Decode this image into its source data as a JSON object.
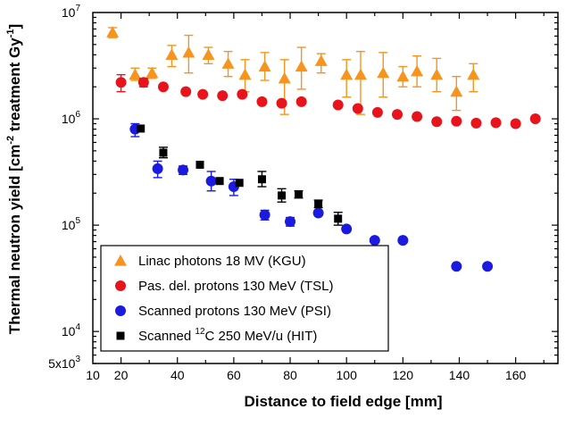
{
  "chart_data": {
    "type": "scatter",
    "xlabel": "Distance to field edge [mm]",
    "ylabel": {
      "main": "Thermal neutron yield [cm",
      "exp1": "-2",
      "mid": " treatment Gy",
      "exp2": "-1",
      "end": "]"
    },
    "xlim": [
      10,
      175
    ],
    "ylim": [
      5000,
      10000000
    ],
    "yscale": "log",
    "x_ticks": [
      {
        "value": 10,
        "label": "10"
      },
      {
        "value": 20,
        "label": "20"
      },
      {
        "value": 40,
        "label": "40"
      },
      {
        "value": 60,
        "label": "60"
      },
      {
        "value": 80,
        "label": "80"
      },
      {
        "value": 100,
        "label": "100"
      },
      {
        "value": 120,
        "label": "120"
      },
      {
        "value": 140,
        "label": "140"
      },
      {
        "value": 160,
        "label": "160"
      }
    ],
    "y_ticks": [
      {
        "value": 5000,
        "base": "5x10",
        "exp": "3"
      },
      {
        "value": 10000,
        "base": "10",
        "exp": "4"
      },
      {
        "value": 100000,
        "base": "10",
        "exp": "5"
      },
      {
        "value": 1000000,
        "base": "10",
        "exp": "6"
      },
      {
        "value": 10000000,
        "base": "10",
        "exp": "7"
      }
    ],
    "legend_position": "bottom-left",
    "series": [
      {
        "name": "Linac photons 18 MV (KGU)",
        "legend_parts": [
          "Linac photons 18 MV (KGU)"
        ],
        "marker": "triangle",
        "color": "#f7941d",
        "points": [
          {
            "x": 17,
            "y": 6500000,
            "lo": 5800000,
            "hi": 7200000
          },
          {
            "x": 25,
            "y": 2600000,
            "lo": 2300000,
            "hi": 3000000
          },
          {
            "x": 31,
            "y": 2700000,
            "lo": 2400000,
            "hi": 3000000
          },
          {
            "x": 38,
            "y": 4000000,
            "lo": 3100000,
            "hi": 4900000
          },
          {
            "x": 44,
            "y": 4200000,
            "lo": 2700000,
            "hi": 6100000
          },
          {
            "x": 51,
            "y": 4000000,
            "lo": 3300000,
            "hi": 4700000
          },
          {
            "x": 58,
            "y": 3300000,
            "lo": 2500000,
            "hi": 4300000
          },
          {
            "x": 64,
            "y": 2600000,
            "lo": 1800000,
            "hi": 3600000
          },
          {
            "x": 71,
            "y": 3100000,
            "lo": 2300000,
            "hi": 4200000
          },
          {
            "x": 78,
            "y": 2400000,
            "lo": 1100000,
            "hi": 3600000
          },
          {
            "x": 84,
            "y": 3100000,
            "lo": 1900000,
            "hi": 4700000
          },
          {
            "x": 91,
            "y": 3500000,
            "lo": 2700000,
            "hi": 4100000
          },
          {
            "x": 100,
            "y": 2600000,
            "lo": 1600000,
            "hi": 3600000
          },
          {
            "x": 105,
            "y": 2600000,
            "lo": 1100000,
            "hi": 4300000
          },
          {
            "x": 113,
            "y": 2700000,
            "lo": 1600000,
            "hi": 4200000
          },
          {
            "x": 120,
            "y": 2500000,
            "lo": 2000000,
            "hi": 3100000
          },
          {
            "x": 125,
            "y": 2800000,
            "lo": 2000000,
            "hi": 3900000
          },
          {
            "x": 132,
            "y": 2600000,
            "lo": 1800000,
            "hi": 3700000
          },
          {
            "x": 139,
            "y": 1800000,
            "lo": 1200000,
            "hi": 2500000
          },
          {
            "x": 145,
            "y": 2600000,
            "lo": 1800000,
            "hi": 3300000
          }
        ]
      },
      {
        "name": "Pas. del. protons 130 MeV (TSL)",
        "legend_parts": [
          "Pas. del. protons 130 MeV (TSL)"
        ],
        "marker": "circle",
        "color": "#e8141b",
        "points": [
          {
            "x": 20,
            "y": 2200000,
            "lo": 1800000,
            "hi": 2600000
          },
          {
            "x": 28,
            "y": 2200000,
            "lo": 2000000,
            "hi": 2400000
          },
          {
            "x": 35,
            "y": 2000000
          },
          {
            "x": 43,
            "y": 1800000
          },
          {
            "x": 49,
            "y": 1700000
          },
          {
            "x": 56,
            "y": 1650000
          },
          {
            "x": 63,
            "y": 1700000
          },
          {
            "x": 70,
            "y": 1450000
          },
          {
            "x": 77,
            "y": 1400000
          },
          {
            "x": 84,
            "y": 1450000
          },
          {
            "x": 97,
            "y": 1350000
          },
          {
            "x": 104,
            "y": 1250000
          },
          {
            "x": 111,
            "y": 1150000
          },
          {
            "x": 118,
            "y": 1100000
          },
          {
            "x": 125,
            "y": 1050000
          },
          {
            "x": 132,
            "y": 940000
          },
          {
            "x": 139,
            "y": 950000
          },
          {
            "x": 146,
            "y": 910000
          },
          {
            "x": 153,
            "y": 920000
          },
          {
            "x": 160,
            "y": 900000
          },
          {
            "x": 167,
            "y": 1000000
          }
        ]
      },
      {
        "name": "Scanned protons 130 MeV (PSI)",
        "legend_parts": [
          "Scanned protons 130 MeV (PSI)"
        ],
        "marker": "circle",
        "color": "#1a1ae0",
        "points": [
          {
            "x": 25,
            "y": 800000,
            "lo": 680000,
            "hi": 900000
          },
          {
            "x": 33,
            "y": 340000,
            "lo": 280000,
            "hi": 400000
          },
          {
            "x": 42,
            "y": 330000,
            "lo": 300000,
            "hi": 360000
          },
          {
            "x": 52,
            "y": 260000,
            "lo": 210000,
            "hi": 320000
          },
          {
            "x": 60,
            "y": 230000,
            "lo": 190000,
            "hi": 270000
          },
          {
            "x": 71,
            "y": 125000,
            "lo": 112000,
            "hi": 138000
          },
          {
            "x": 80,
            "y": 108000,
            "lo": 98000,
            "hi": 118000
          },
          {
            "x": 90,
            "y": 130000
          },
          {
            "x": 100,
            "y": 92000
          },
          {
            "x": 110,
            "y": 72000
          },
          {
            "x": 120,
            "y": 72000
          },
          {
            "x": 139,
            "y": 41000
          },
          {
            "x": 150,
            "y": 41000
          }
        ]
      },
      {
        "name": "Scanned 12C 250 MeV/u (HIT)",
        "legend_parts": [
          "Scanned ",
          "12",
          "C 250 MeV/u (HIT)"
        ],
        "marker": "square",
        "color": "#000000",
        "points": [
          {
            "x": 27,
            "y": 810000
          },
          {
            "x": 35,
            "y": 480000,
            "lo": 430000,
            "hi": 540000
          },
          {
            "x": 48,
            "y": 370000
          },
          {
            "x": 55,
            "y": 260000
          },
          {
            "x": 62,
            "y": 250000
          },
          {
            "x": 70,
            "y": 270000,
            "lo": 230000,
            "hi": 320000
          },
          {
            "x": 77,
            "y": 190000,
            "lo": 165000,
            "hi": 220000
          },
          {
            "x": 83,
            "y": 195000,
            "lo": 180000,
            "hi": 210000
          },
          {
            "x": 90,
            "y": 158000,
            "lo": 146000,
            "hi": 172000
          },
          {
            "x": 97,
            "y": 115000,
            "lo": 100000,
            "hi": 132000
          }
        ]
      }
    ]
  }
}
